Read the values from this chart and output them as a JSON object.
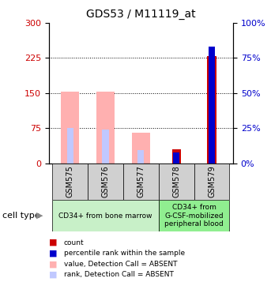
{
  "title": "GDS53 / M11119_at",
  "samples": [
    "GSM575",
    "GSM576",
    "GSM577",
    "GSM578",
    "GSM579"
  ],
  "cell_types": {
    "group1": {
      "samples": [
        "GSM575",
        "GSM576",
        "GSM577"
      ],
      "label": "CD34+ from bone marrow",
      "color": "#c8f0c8"
    },
    "group2": {
      "samples": [
        "GSM578",
        "GSM579"
      ],
      "label": "CD34+ from\nG-CSF-mobilized\nperipheral blood",
      "color": "#90ee90"
    }
  },
  "left_yaxis": {
    "ticks": [
      0,
      75,
      150,
      225,
      300
    ],
    "ylim": [
      0,
      300
    ]
  },
  "right_yaxis": {
    "ticks": [
      0,
      25,
      50,
      75,
      100
    ],
    "ylim": [
      0,
      100
    ]
  },
  "bars": {
    "GSM575": {
      "value_absent": 153,
      "rank_absent": 75,
      "count": null,
      "percentile": null
    },
    "GSM576": {
      "value_absent": 153,
      "rank_absent": 73,
      "count": null,
      "percentile": null
    },
    "GSM577": {
      "value_absent": 65,
      "rank_absent": 28,
      "count": null,
      "percentile": null
    },
    "GSM578": {
      "value_absent": null,
      "rank_absent": null,
      "count": 30,
      "percentile": 8
    },
    "GSM579": {
      "value_absent": null,
      "rank_absent": null,
      "count": 228,
      "percentile": 83
    }
  },
  "colors": {
    "value_absent": "#ffb0b0",
    "rank_absent": "#c0c8ff",
    "count": "#cc0000",
    "percentile": "#0000cc"
  },
  "grid_lines": [
    75,
    150,
    225
  ],
  "legend": [
    {
      "color": "#cc0000",
      "label": "count"
    },
    {
      "color": "#0000cc",
      "label": "percentile rank within the sample"
    },
    {
      "color": "#ffb0b0",
      "label": "value, Detection Call = ABSENT"
    },
    {
      "color": "#c0c8ff",
      "label": "rank, Detection Call = ABSENT"
    }
  ],
  "cell_type_label": "cell type",
  "bg_color": "#ffffff",
  "tick_color_left": "#cc0000",
  "tick_color_right": "#0000cc",
  "gray_box": "#d0d0d0"
}
